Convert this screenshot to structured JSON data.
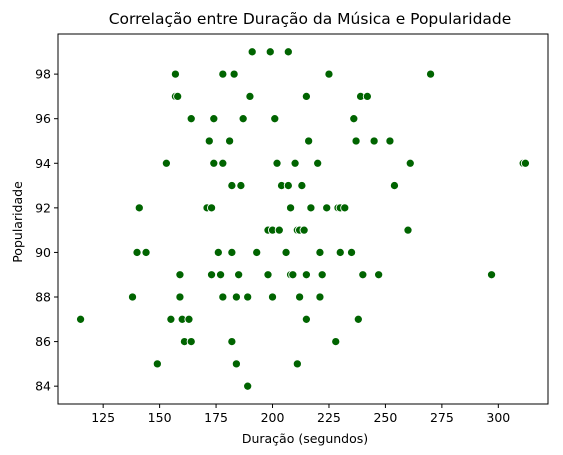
{
  "chart_data": {
    "type": "scatter",
    "title": "Correlação entre Duração da Música e Popularidade",
    "xlabel": "Duração (segundos)",
    "ylabel": "Popularidade",
    "xlim": [
      105,
      322
    ],
    "ylim": [
      83.2,
      99.8
    ],
    "xticks": [
      125,
      150,
      175,
      200,
      225,
      250,
      275,
      300
    ],
    "yticks": [
      84,
      86,
      88,
      90,
      92,
      94,
      96,
      98
    ],
    "grid": false,
    "marker_color": "#006400",
    "points": [
      [
        115,
        87
      ],
      [
        138,
        88
      ],
      [
        140,
        90
      ],
      [
        141,
        92
      ],
      [
        144,
        90
      ],
      [
        149,
        85
      ],
      [
        153,
        94
      ],
      [
        155,
        87
      ],
      [
        157,
        98
      ],
      [
        157,
        97
      ],
      [
        158,
        97
      ],
      [
        159,
        89
      ],
      [
        159,
        88
      ],
      [
        160,
        87
      ],
      [
        161,
        86
      ],
      [
        163,
        87
      ],
      [
        164,
        86
      ],
      [
        164,
        96
      ],
      [
        171,
        92
      ],
      [
        172,
        95
      ],
      [
        173,
        92
      ],
      [
        173,
        89
      ],
      [
        174,
        94
      ],
      [
        174,
        96
      ],
      [
        176,
        90
      ],
      [
        177,
        89
      ],
      [
        178,
        94
      ],
      [
        178,
        88
      ],
      [
        178,
        98
      ],
      [
        181,
        95
      ],
      [
        182,
        86
      ],
      [
        182,
        93
      ],
      [
        182,
        90
      ],
      [
        183,
        98
      ],
      [
        184,
        85
      ],
      [
        184,
        88
      ],
      [
        185,
        89
      ],
      [
        186,
        93
      ],
      [
        187,
        96
      ],
      [
        189,
        88
      ],
      [
        189,
        84
      ],
      [
        190,
        97
      ],
      [
        191,
        99
      ],
      [
        193,
        90
      ],
      [
        198,
        91
      ],
      [
        198,
        89
      ],
      [
        199,
        99
      ],
      [
        200,
        91
      ],
      [
        200,
        88
      ],
      [
        201,
        96
      ],
      [
        202,
        94
      ],
      [
        203,
        91
      ],
      [
        204,
        93
      ],
      [
        206,
        90
      ],
      [
        207,
        93
      ],
      [
        207,
        99
      ],
      [
        208,
        89
      ],
      [
        208,
        92
      ],
      [
        209,
        89
      ],
      [
        210,
        94
      ],
      [
        211,
        91
      ],
      [
        211,
        85
      ],
      [
        212,
        91
      ],
      [
        212,
        88
      ],
      [
        213,
        93
      ],
      [
        214,
        91
      ],
      [
        215,
        89
      ],
      [
        215,
        87
      ],
      [
        215,
        97
      ],
      [
        216,
        95
      ],
      [
        217,
        92
      ],
      [
        220,
        94
      ],
      [
        221,
        90
      ],
      [
        221,
        88
      ],
      [
        222,
        89
      ],
      [
        224,
        92
      ],
      [
        225,
        98
      ],
      [
        228,
        86
      ],
      [
        229,
        92
      ],
      [
        230,
        90
      ],
      [
        230,
        92
      ],
      [
        232,
        92
      ],
      [
        235,
        90
      ],
      [
        236,
        96
      ],
      [
        237,
        95
      ],
      [
        238,
        87
      ],
      [
        239,
        97
      ],
      [
        240,
        89
      ],
      [
        242,
        97
      ],
      [
        245,
        95
      ],
      [
        247,
        89
      ],
      [
        252,
        95
      ],
      [
        254,
        93
      ],
      [
        260,
        91
      ],
      [
        261,
        94
      ],
      [
        270,
        98
      ],
      [
        297,
        89
      ],
      [
        311,
        94
      ],
      [
        312,
        94
      ]
    ]
  }
}
